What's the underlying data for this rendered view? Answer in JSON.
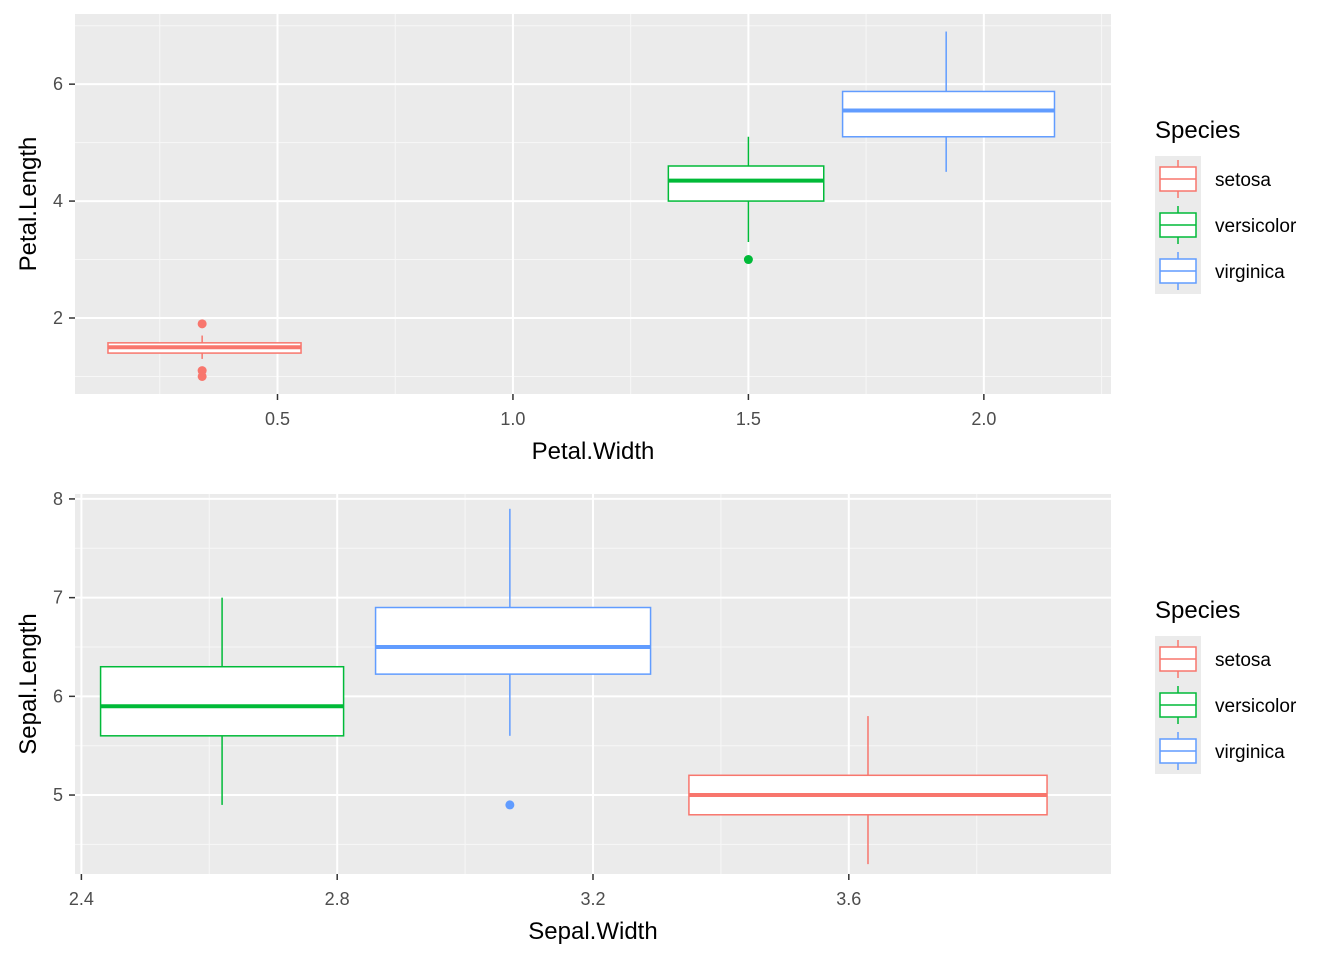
{
  "colors": {
    "setosa": "#F8766D",
    "versicolor": "#00BA38",
    "virginica": "#619CFF",
    "panel_bg": "#EBEBEB",
    "grid_major": "#FFFFFF",
    "grid_minor": "#F7F7F7",
    "tick_text": "#4D4D4D"
  },
  "chart_data": [
    {
      "type": "boxplot",
      "xlabel": "Petal.Width",
      "ylabel": "Petal.Length",
      "xlim": [
        0.07,
        2.27
      ],
      "ylim": [
        0.7,
        7.2
      ],
      "x_ticks": [
        0.5,
        1.0,
        1.5,
        2.0
      ],
      "x_tick_labels": [
        "0.5",
        "1.0",
        "1.5",
        "2.0"
      ],
      "y_ticks": [
        2,
        4,
        6
      ],
      "y_tick_labels": [
        "2",
        "4",
        "6"
      ],
      "grid": true,
      "legend": {
        "title": "Species",
        "position": "right",
        "entries": [
          "setosa",
          "versicolor",
          "virginica"
        ]
      },
      "boxes": [
        {
          "group": "setosa",
          "xmin": 0.14,
          "xmax": 0.55,
          "xcenter": 0.34,
          "lower_whisker": 1.3,
          "q1": 1.4,
          "median": 1.5,
          "q3": 1.575,
          "upper_whisker": 1.7,
          "outliers": [
            1.0,
            1.1,
            1.9
          ]
        },
        {
          "group": "versicolor",
          "xmin": 1.33,
          "xmax": 1.66,
          "xcenter": 1.5,
          "lower_whisker": 3.3,
          "q1": 4.0,
          "median": 4.35,
          "q3": 4.6,
          "upper_whisker": 5.1,
          "outliers": [
            3.0
          ]
        },
        {
          "group": "virginica",
          "xmin": 1.7,
          "xmax": 2.15,
          "xcenter": 1.92,
          "lower_whisker": 4.5,
          "q1": 5.1,
          "median": 5.55,
          "q3": 5.875,
          "upper_whisker": 6.9,
          "outliers": []
        }
      ]
    },
    {
      "type": "boxplot",
      "xlabel": "Sepal.Width",
      "ylabel": "Sepal.Length",
      "xlim": [
        2.39,
        4.01
      ],
      "ylim": [
        4.2,
        8.05
      ],
      "x_ticks": [
        2.4,
        2.8,
        3.2,
        3.6
      ],
      "x_tick_labels": [
        "2.4",
        "2.8",
        "3.2",
        "3.6"
      ],
      "y_ticks": [
        5,
        6,
        7,
        8
      ],
      "y_tick_labels": [
        "5",
        "6",
        "7",
        "8"
      ],
      "grid": true,
      "legend": {
        "title": "Species",
        "position": "right",
        "entries": [
          "setosa",
          "versicolor",
          "virginica"
        ]
      },
      "boxes": [
        {
          "group": "versicolor",
          "xmin": 2.43,
          "xmax": 2.81,
          "xcenter": 2.62,
          "lower_whisker": 4.9,
          "q1": 5.6,
          "median": 5.9,
          "q3": 6.3,
          "upper_whisker": 7.0,
          "outliers": []
        },
        {
          "group": "virginica",
          "xmin": 2.86,
          "xmax": 3.29,
          "xcenter": 3.07,
          "lower_whisker": 5.6,
          "q1": 6.225,
          "median": 6.5,
          "q3": 6.9,
          "upper_whisker": 7.9,
          "outliers": [
            4.9
          ]
        },
        {
          "group": "setosa",
          "xmin": 3.35,
          "xmax": 3.91,
          "xcenter": 3.63,
          "lower_whisker": 4.3,
          "q1": 4.8,
          "median": 5.0,
          "q3": 5.2,
          "upper_whisker": 5.8,
          "outliers": []
        }
      ]
    }
  ]
}
